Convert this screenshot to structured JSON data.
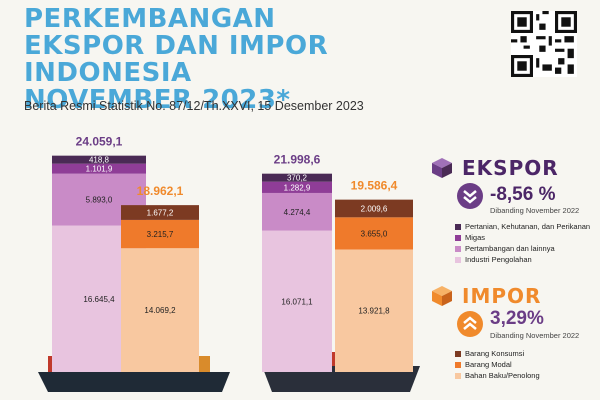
{
  "header": {
    "title_line1": "PERKEMBANGAN",
    "title_line2": "EKSPOR DAN IMPOR INDONESIA",
    "title_line3": "NOVEMBER 2023*",
    "subtitle": "Berita Resmi Statistik No. 87/12/Th.XXVI, 15 Desember 2023"
  },
  "colors": {
    "title": "#4aa8d8",
    "export_dark": "#4a2a55",
    "export_purple": "#8f3d97",
    "export_lavender": "#c98bc7",
    "export_pink": "#e8c4df",
    "import_brown": "#7c3a22",
    "import_orange": "#ef7a2b",
    "import_peach": "#f8c8a0",
    "accent_export": "#6b3d86",
    "accent_import": "#f08a2c"
  },
  "chart_data": {
    "type": "bar",
    "stacked": true,
    "groups": [
      {
        "period": "first",
        "export": {
          "total": "24.059,1",
          "segments": [
            16645.4,
            5893.0,
            1101.9,
            418.8
          ],
          "labels": [
            "16.645,4",
            "5.893,0",
            "1.101,9",
            "418,8"
          ]
        },
        "import": {
          "total": "18.962,1",
          "segments": [
            14069.2,
            3215.7,
            1677.2
          ],
          "labels": [
            "14.069,2",
            "3.215,7",
            "1.677,2"
          ]
        }
      },
      {
        "period": "second",
        "export": {
          "total": "21.998,6",
          "segments": [
            16071.1,
            4274.4,
            1282.9,
            370.2
          ],
          "labels": [
            "16.071,1",
            "4.274,4",
            "1.282,9",
            "370,2"
          ]
        },
        "import": {
          "total": "19.586,4",
          "segments": [
            13921.8,
            3655.0,
            2009.6
          ],
          "labels": [
            "13.921,8",
            "3.655,0",
            "2.009,6"
          ]
        }
      }
    ]
  },
  "ekspor": {
    "title": "EKSPOR",
    "value": "-8,56 %",
    "note": "Dibanding November 2022",
    "legend": [
      "Pertanian, Kehutanan, dan Perikanan",
      "Migas",
      "Pertambangan dan lainnya",
      "Industri Pengolahan"
    ],
    "legend_colors": [
      "#4a2a55",
      "#8f3d97",
      "#c98bc7",
      "#e8c4df"
    ],
    "icon": "down-arrows-icon"
  },
  "impor": {
    "title": "IMPOR",
    "value": "3,29%",
    "note": "Dibanding November 2022",
    "legend": [
      "Barang Konsumsi",
      "Barang Modal",
      "Bahan Baku/Penolong"
    ],
    "legend_colors": [
      "#7c3a22",
      "#ef7a2b",
      "#f8c8a0"
    ],
    "icon": "up-arrows-icon"
  }
}
